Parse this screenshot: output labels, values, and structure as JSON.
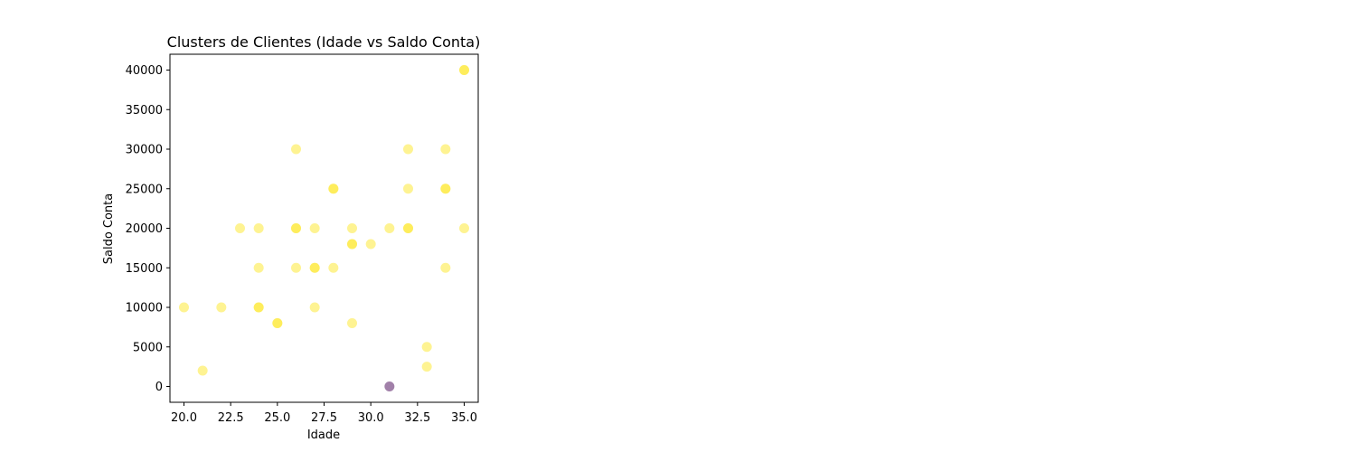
{
  "chart_data": {
    "type": "scatter",
    "title": "Clusters de Clientes (Idade vs Saldo Conta)",
    "xlabel": "Idade",
    "ylabel": "Saldo Conta",
    "xlim": [
      19.25,
      35.75
    ],
    "ylim": [
      -2000,
      42000
    ],
    "xticks": [
      20.0,
      22.5,
      25.0,
      27.5,
      30.0,
      32.5,
      35.0
    ],
    "xtick_labels": [
      "20.0",
      "22.5",
      "25.0",
      "27.5",
      "30.0",
      "32.5",
      "35.0"
    ],
    "yticks": [
      0,
      5000,
      10000,
      15000,
      20000,
      25000,
      30000,
      35000,
      40000
    ],
    "ytick_labels": [
      "0",
      "5000",
      "10000",
      "15000",
      "20000",
      "25000",
      "30000",
      "35000",
      "40000"
    ],
    "grid": false,
    "colors": {
      "cluster_0": "#440154",
      "cluster_1": "#fde725"
    },
    "series": [
      {
        "cluster": 1,
        "points": [
          [
            20,
            10000
          ],
          [
            21,
            2000
          ],
          [
            22,
            10000
          ],
          [
            23,
            20000
          ],
          [
            24,
            20000
          ],
          [
            24,
            15000
          ],
          [
            24,
            10000
          ],
          [
            24,
            10000
          ],
          [
            25,
            8000
          ],
          [
            25,
            8000
          ],
          [
            26,
            30000
          ],
          [
            26,
            20000
          ],
          [
            26,
            20000
          ],
          [
            26,
            15000
          ],
          [
            27,
            20000
          ],
          [
            27,
            15000
          ],
          [
            27,
            15000
          ],
          [
            27,
            10000
          ],
          [
            28,
            25000
          ],
          [
            28,
            25000
          ],
          [
            28,
            15000
          ],
          [
            29,
            20000
          ],
          [
            29,
            18000
          ],
          [
            29,
            18000
          ],
          [
            29,
            8000
          ],
          [
            30,
            18000
          ],
          [
            31,
            20000
          ],
          [
            32,
            30000
          ],
          [
            32,
            25000
          ],
          [
            32,
            20000
          ],
          [
            32,
            20000
          ],
          [
            33,
            5000
          ],
          [
            33,
            2500
          ],
          [
            34,
            30000
          ],
          [
            34,
            25000
          ],
          [
            34,
            25000
          ],
          [
            34,
            15000
          ],
          [
            35,
            40000
          ],
          [
            35,
            40000
          ],
          [
            35,
            20000
          ]
        ]
      },
      {
        "cluster": 0,
        "points": [
          [
            31,
            0
          ]
        ]
      }
    ]
  }
}
